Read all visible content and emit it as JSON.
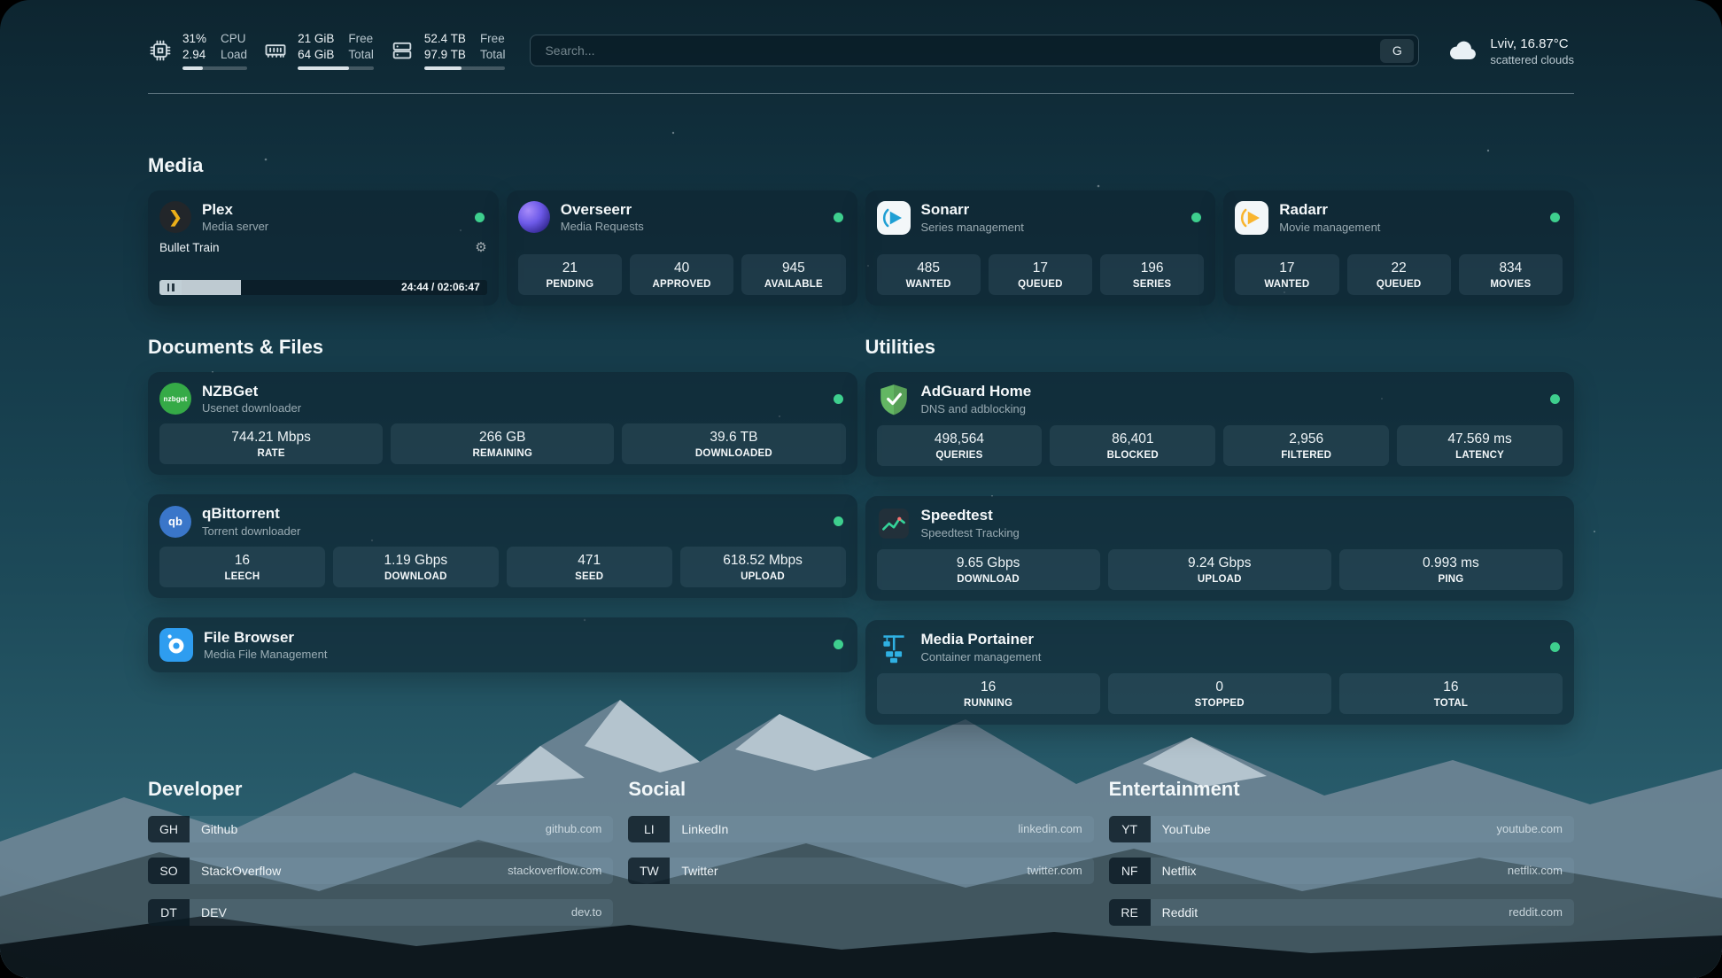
{
  "topbar": {
    "cpu": {
      "value1": "31%",
      "label1": "CPU",
      "value2": "2.94",
      "label2": "Load",
      "percent": 31
    },
    "memory": {
      "value1": "21 GiB",
      "label1": "Free",
      "value2": "64 GiB",
      "label2": "Total",
      "percent": 67
    },
    "disk": {
      "value1": "52.4 TB",
      "label1": "Free",
      "value2": "97.9 TB",
      "label2": "Total",
      "percent": 46
    },
    "search": {
      "placeholder": "Search...",
      "button_label": "G",
      "value": ""
    },
    "weather": {
      "location": "Lviv, 16.87°C",
      "condition": "scattered clouds"
    }
  },
  "media": {
    "title": "Media",
    "plex": {
      "name": "Plex",
      "subtitle": "Media server",
      "now_playing": "Bullet Train",
      "time": "24:44 / 02:06:47",
      "progress_percent": 19.5
    },
    "cards": [
      {
        "name": "Overseerr",
        "subtitle": "Media Requests",
        "stats": [
          {
            "value": "21",
            "label": "PENDING"
          },
          {
            "value": "40",
            "label": "APPROVED"
          },
          {
            "value": "945",
            "label": "AVAILABLE"
          }
        ]
      },
      {
        "name": "Sonarr",
        "subtitle": "Series management",
        "stats": [
          {
            "value": "485",
            "label": "WANTED"
          },
          {
            "value": "17",
            "label": "QUEUED"
          },
          {
            "value": "196",
            "label": "SERIES"
          }
        ]
      },
      {
        "name": "Radarr",
        "subtitle": "Movie management",
        "stats": [
          {
            "value": "17",
            "label": "WANTED"
          },
          {
            "value": "22",
            "label": "QUEUED"
          },
          {
            "value": "834",
            "label": "MOVIES"
          }
        ]
      }
    ]
  },
  "documents": {
    "title": "Documents & Files",
    "cards": [
      {
        "name": "NZBGet",
        "subtitle": "Usenet downloader",
        "stats": [
          {
            "value": "744.21 Mbps",
            "label": "RATE"
          },
          {
            "value": "266 GB",
            "label": "REMAINING"
          },
          {
            "value": "39.6 TB",
            "label": "DOWNLOADED"
          }
        ]
      },
      {
        "name": "qBittorrent",
        "subtitle": "Torrent downloader",
        "stats": [
          {
            "value": "16",
            "label": "LEECH"
          },
          {
            "value": "1.19 Gbps",
            "label": "DOWNLOAD"
          },
          {
            "value": "471",
            "label": "SEED"
          },
          {
            "value": "618.52 Mbps",
            "label": "UPLOAD"
          }
        ]
      },
      {
        "name": "File Browser",
        "subtitle": "Media File Management",
        "stats": []
      }
    ]
  },
  "utilities": {
    "title": "Utilities",
    "cards": [
      {
        "name": "AdGuard Home",
        "subtitle": "DNS and adblocking",
        "stats": [
          {
            "value": "498,564",
            "label": "QUERIES"
          },
          {
            "value": "86,401",
            "label": "BLOCKED"
          },
          {
            "value": "2,956",
            "label": "FILTERED"
          },
          {
            "value": "47.569 ms",
            "label": "LATENCY"
          }
        ]
      },
      {
        "name": "Speedtest",
        "subtitle": "Speedtest Tracking",
        "stats": [
          {
            "value": "9.65 Gbps",
            "label": "DOWNLOAD"
          },
          {
            "value": "9.24 Gbps",
            "label": "UPLOAD"
          },
          {
            "value": "0.993 ms",
            "label": "PING"
          }
        ]
      },
      {
        "name": "Media Portainer",
        "subtitle": "Container management",
        "stats": [
          {
            "value": "16",
            "label": "RUNNING"
          },
          {
            "value": "0",
            "label": "STOPPED"
          },
          {
            "value": "16",
            "label": "TOTAL"
          }
        ]
      }
    ]
  },
  "bookmarks": [
    {
      "title": "Developer",
      "items": [
        {
          "abbr": "GH",
          "name": "Github",
          "url": "github.com"
        },
        {
          "abbr": "SO",
          "name": "StackOverflow",
          "url": "stackoverflow.com"
        },
        {
          "abbr": "DT",
          "name": "DEV",
          "url": "dev.to"
        }
      ]
    },
    {
      "title": "Social",
      "items": [
        {
          "abbr": "LI",
          "name": "LinkedIn",
          "url": "linkedin.com"
        },
        {
          "abbr": "TW",
          "name": "Twitter",
          "url": "twitter.com"
        }
      ]
    },
    {
      "title": "Entertainment",
      "items": [
        {
          "abbr": "YT",
          "name": "YouTube",
          "url": "youtube.com"
        },
        {
          "abbr": "NF",
          "name": "Netflix",
          "url": "netflix.com"
        },
        {
          "abbr": "RE",
          "name": "Reddit",
          "url": "reddit.com"
        }
      ]
    }
  ],
  "icons": {
    "plex_glyph": "❯",
    "gear_glyph": "⚙",
    "nzbget_glyph": "nzbget",
    "qbittorrent_glyph": "qb"
  },
  "colors": {
    "status": "#3ecf8e"
  }
}
